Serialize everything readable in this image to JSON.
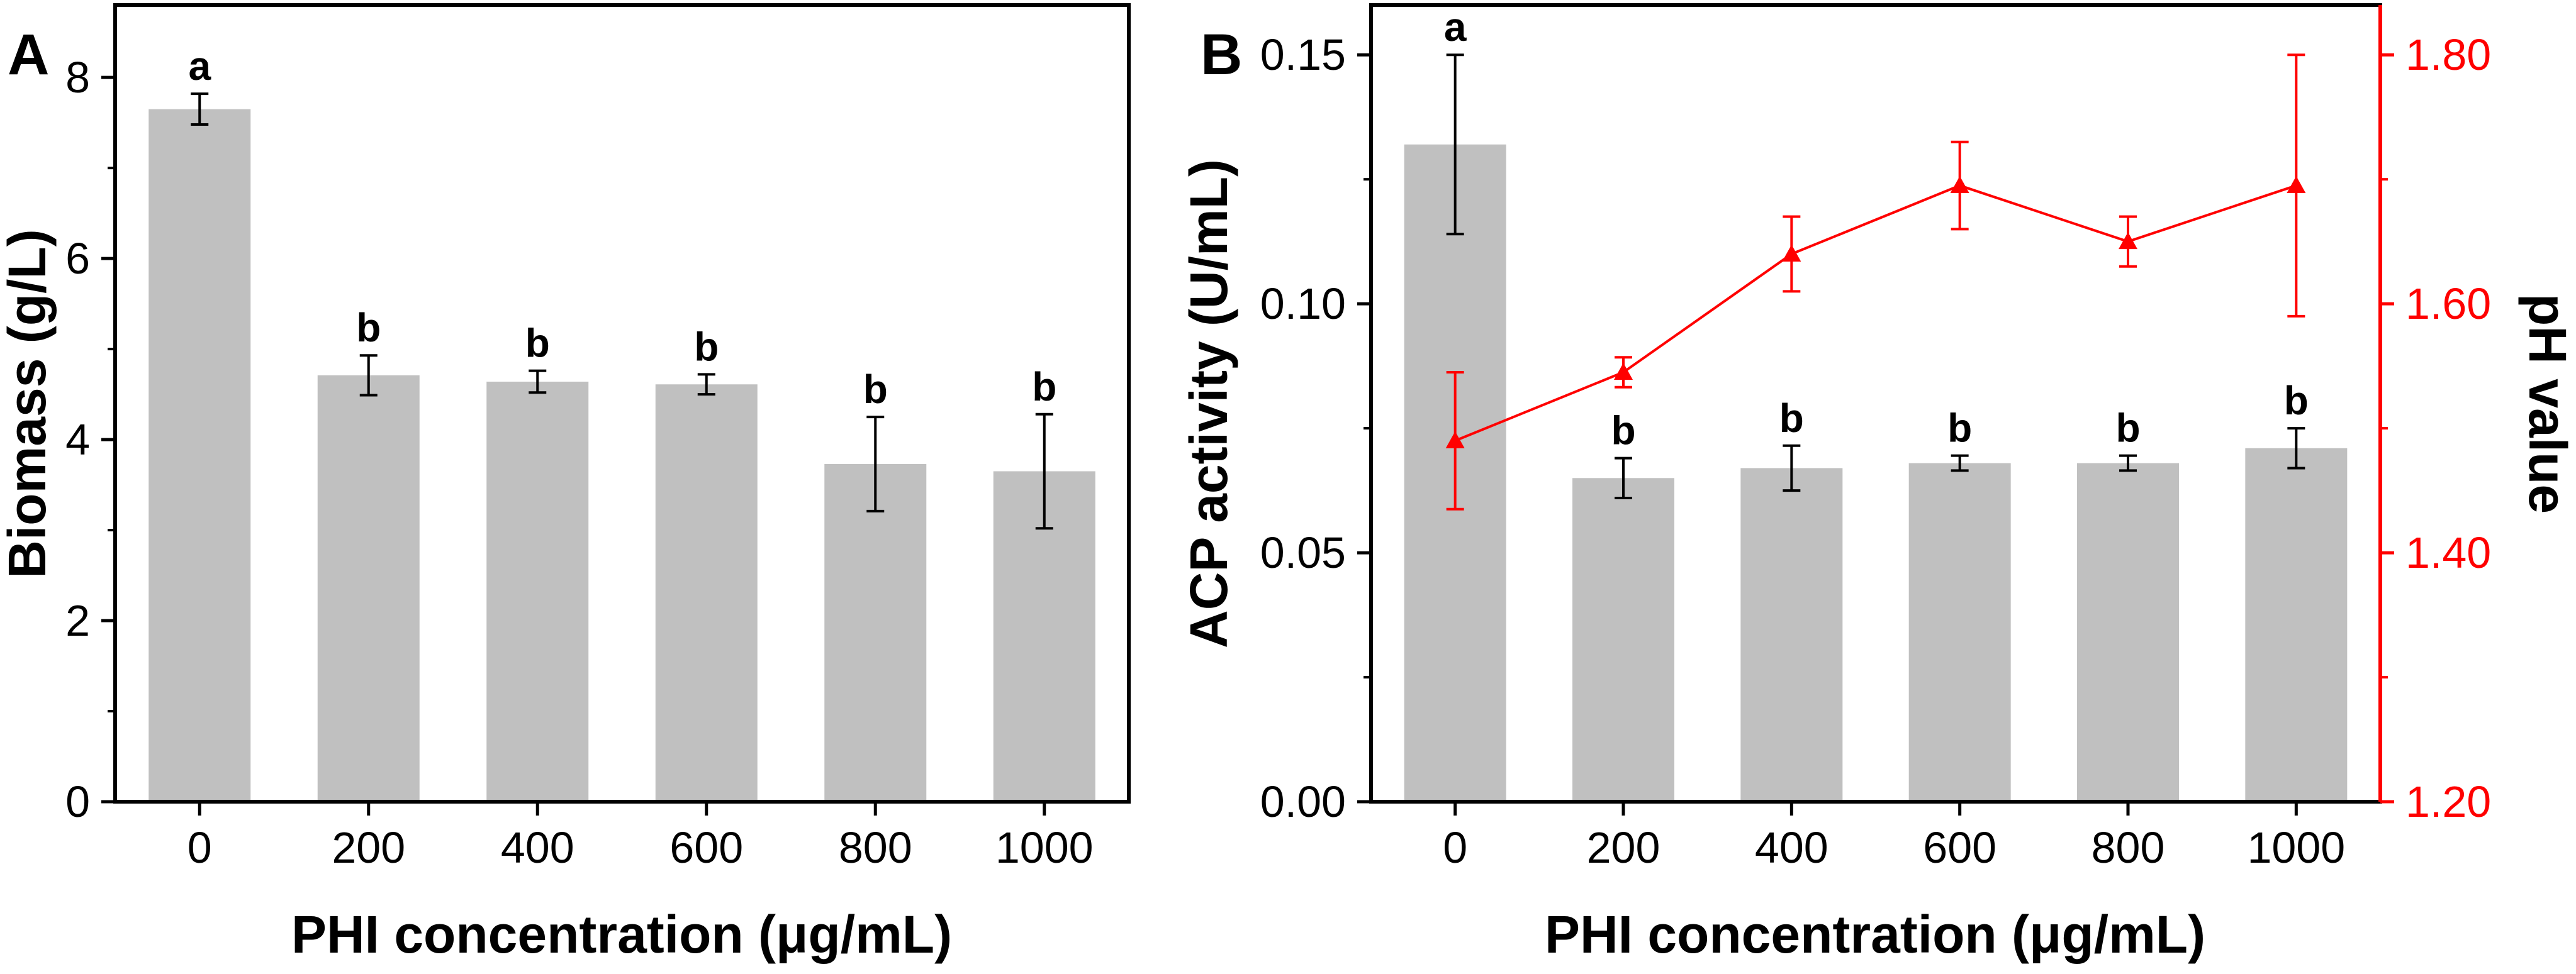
{
  "chart_data": [
    {
      "panel_label": "A",
      "type": "bar",
      "xlabel": "PHI concentration (μg/mL)",
      "ylabel": "Biomass (g/L)",
      "ylim": [
        0,
        8.8
      ],
      "yticks": [
        0,
        2,
        4,
        6,
        8
      ],
      "ytick_labels": [
        "0",
        "2",
        "4",
        "6",
        "8"
      ],
      "categories": [
        "0",
        "200",
        "400",
        "600",
        "800",
        "1000"
      ],
      "values": [
        7.65,
        4.71,
        4.64,
        4.61,
        3.73,
        3.65
      ],
      "errors": [
        0.17,
        0.22,
        0.12,
        0.11,
        0.52,
        0.63
      ],
      "significance": [
        "a",
        "b",
        "b",
        "b",
        "b",
        "b"
      ],
      "bar_color": "#c0c0c0",
      "error_color": "#000000"
    },
    {
      "panel_label": "B",
      "type": "bar+line",
      "xlabel": "PHI concentration (μg/mL)",
      "ylabel": "ACP activity (U/mL)",
      "ylabel_right": "pH value",
      "ylim": [
        0,
        0.16
      ],
      "yticks": [
        0,
        0.05,
        0.1,
        0.15
      ],
      "ytick_labels": [
        "0.00",
        "0.05",
        "0.10",
        "0.15"
      ],
      "ylim_right": [
        1.2,
        1.84
      ],
      "yticks_right": [
        1.2,
        1.4,
        1.6,
        1.8
      ],
      "ytick_labels_right": [
        "1.20",
        "1.40",
        "1.60",
        "1.80"
      ],
      "categories": [
        "0",
        "200",
        "400",
        "600",
        "800",
        "1000"
      ],
      "series": [
        {
          "name": "ACP activity",
          "type": "bar",
          "axis": "left",
          "values": [
            0.132,
            0.065,
            0.067,
            0.068,
            0.068,
            0.071
          ],
          "errors": [
            0.018,
            0.004,
            0.0045,
            0.0015,
            0.0015,
            0.004
          ],
          "significance": [
            "a",
            "b",
            "b",
            "b",
            "b",
            "b"
          ],
          "color": "#c0c0c0"
        },
        {
          "name": "pH value",
          "type": "line",
          "axis": "right",
          "marker": "triangle",
          "values": [
            1.49,
            1.545,
            1.64,
            1.695,
            1.65,
            1.695
          ],
          "errors": [
            0.055,
            0.012,
            0.03,
            0.035,
            0.02,
            0.105
          ],
          "color": "#ff0000"
        }
      ]
    }
  ]
}
